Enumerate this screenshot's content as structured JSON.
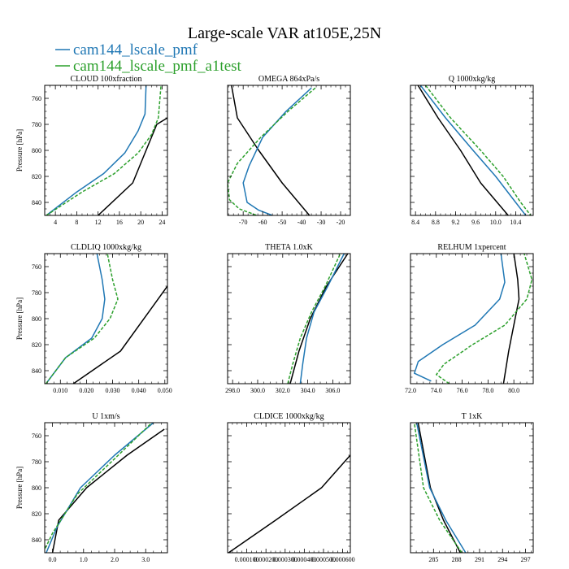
{
  "title": "Large-scale VAR at105E,25N",
  "legend": [
    {
      "label": "cam144_lscale_pmf",
      "color": "#1f77b4"
    },
    {
      "label": "cam144_lscale_pmf_a1test",
      "color": "#2ca02c"
    }
  ],
  "colors": {
    "obs": "#000000",
    "pmf": "#1f77b4",
    "a1test": "#2ca02c"
  },
  "chart_data": [
    {
      "type": "line",
      "title": "CLOUD  100xfraction",
      "ylabel": "Pressure [hPa]",
      "xlim": [
        2,
        25
      ],
      "ylim": [
        850,
        750
      ],
      "xticks": [
        4,
        8,
        12,
        16,
        20,
        24
      ],
      "xtick_labels": [
        "4",
        "8",
        "12",
        "16",
        "20",
        "24"
      ],
      "yticks": [
        760,
        780,
        800,
        820,
        840
      ],
      "ytick_labels": [
        "760",
        "780",
        "800",
        "820",
        "840"
      ],
      "series": [
        {
          "color": "#000000",
          "dash": "",
          "x": [
            12,
            18.5,
            21,
            23,
            25
          ],
          "y": [
            850,
            825,
            800,
            780,
            775
          ]
        },
        {
          "color": "#1f77b4",
          "dash": "",
          "x": [
            2.3,
            8,
            13,
            17,
            19.5,
            20.8,
            21
          ],
          "y": [
            850,
            832,
            818,
            802,
            785,
            772,
            750
          ]
        },
        {
          "color": "#2ca02c",
          "dash": "4 2",
          "x": [
            2.3,
            9,
            15,
            19.5,
            22,
            23.3,
            23.8
          ],
          "y": [
            850,
            832,
            818,
            802,
            788,
            775,
            750
          ]
        }
      ]
    },
    {
      "type": "line",
      "title": "OMEGA  864xPa/s",
      "ylabel": "",
      "xlim": [
        -78,
        -15
      ],
      "ylim": [
        850,
        750
      ],
      "xticks": [
        -70,
        -60,
        -50,
        -40,
        -30,
        -20
      ],
      "xtick_labels": [
        "-70",
        "-60",
        "-50",
        "-40",
        "-30",
        "-20"
      ],
      "yticks": [
        760,
        780,
        800,
        820,
        840
      ],
      "ytick_labels": [
        "",
        "",
        "",
        "",
        ""
      ],
      "series": [
        {
          "color": "#000000",
          "dash": "",
          "x": [
            -76,
            -73,
            -62,
            -50,
            -36
          ],
          "y": [
            750,
            775,
            800,
            825,
            850
          ]
        },
        {
          "color": "#1f77b4",
          "dash": "",
          "x": [
            -35,
            -48,
            -60,
            -67,
            -70,
            -68,
            -62,
            -55
          ],
          "y": [
            752,
            770,
            790,
            812,
            825,
            840,
            846,
            850
          ]
        },
        {
          "color": "#2ca02c",
          "dash": "4 2",
          "x": [
            -33,
            -47,
            -61,
            -73,
            -78,
            -77,
            -72,
            -63
          ],
          "y": [
            752,
            770,
            790,
            810,
            825,
            838,
            845,
            850
          ]
        }
      ]
    },
    {
      "type": "line",
      "title": "Q  1000xkg/kg",
      "ylabel": "",
      "xlim": [
        8.3,
        10.75
      ],
      "ylim": [
        850,
        750
      ],
      "xticks": [
        8.4,
        8.8,
        9.2,
        9.6,
        10.0,
        10.4
      ],
      "xtick_labels": [
        "8.4",
        "8.8",
        "9.2",
        "9.6",
        "10.0",
        "10.4"
      ],
      "yticks": [
        760,
        780,
        800,
        820,
        840
      ],
      "ytick_labels": [
        "",
        "",
        "",
        "",
        ""
      ],
      "series": [
        {
          "color": "#000000",
          "dash": "",
          "x": [
            8.45,
            8.85,
            9.3,
            9.7,
            10.25
          ],
          "y": [
            750,
            775,
            800,
            825,
            850
          ]
        },
        {
          "color": "#1f77b4",
          "dash": "",
          "x": [
            8.5,
            9.0,
            9.55,
            10.0,
            10.4,
            10.6
          ],
          "y": [
            750,
            775,
            800,
            820,
            840,
            850
          ]
        },
        {
          "color": "#2ca02c",
          "dash": "4 2",
          "x": [
            8.6,
            9.1,
            9.7,
            10.15,
            10.5,
            10.7
          ],
          "y": [
            750,
            775,
            800,
            820,
            840,
            850
          ]
        }
      ]
    },
    {
      "type": "line",
      "title": "CLDLIQ  1000xkg/kg",
      "ylabel": "Pressure [hPa]",
      "xlim": [
        0.004,
        0.051
      ],
      "ylim": [
        850,
        750
      ],
      "xticks": [
        0.01,
        0.02,
        0.03,
        0.04,
        0.05
      ],
      "xtick_labels": [
        "0.010",
        "0.020",
        "0.030",
        "0.040",
        "0.050"
      ],
      "yticks": [
        760,
        780,
        800,
        820,
        840
      ],
      "ytick_labels": [
        "760",
        "780",
        "800",
        "820",
        "840"
      ],
      "series": [
        {
          "color": "#000000",
          "dash": "",
          "x": [
            0.015,
            0.033,
            0.051
          ],
          "y": [
            850,
            825,
            775
          ]
        },
        {
          "color": "#1f77b4",
          "dash": "",
          "x": [
            0.0045,
            0.012,
            0.022,
            0.026,
            0.027,
            0.026,
            0.024
          ],
          "y": [
            850,
            830,
            815,
            800,
            785,
            770,
            750
          ]
        },
        {
          "color": "#2ca02c",
          "dash": "4 2",
          "x": [
            0.0045,
            0.012,
            0.023,
            0.029,
            0.032,
            0.03,
            0.028
          ],
          "y": [
            850,
            830,
            815,
            800,
            785,
            770,
            750
          ]
        }
      ]
    },
    {
      "type": "line",
      "title": "THETA  1.0xK",
      "ylabel": "",
      "xlim": [
        297.6,
        307.4
      ],
      "ylim": [
        850,
        750
      ],
      "xticks": [
        298,
        300,
        302,
        304,
        306
      ],
      "xtick_labels": [
        "298.0",
        "300.0",
        "302.0",
        "304.0",
        "306.0"
      ],
      "yticks": [
        760,
        780,
        800,
        820,
        840
      ],
      "ytick_labels": [
        "",
        "",
        "",
        "",
        ""
      ],
      "series": [
        {
          "color": "#000000",
          "dash": "",
          "x": [
            302.6,
            303.3,
            304.2,
            305.5,
            307.2
          ],
          "y": [
            850,
            825,
            800,
            775,
            750
          ]
        },
        {
          "color": "#1f77b4",
          "dash": "",
          "x": [
            303.4,
            303.6,
            303.9,
            304.5,
            305.6,
            306.9
          ],
          "y": [
            850,
            835,
            815,
            795,
            775,
            750
          ]
        },
        {
          "color": "#2ca02c",
          "dash": "4 2",
          "x": [
            302.4,
            302.8,
            303.4,
            304.3,
            305.4,
            306.6
          ],
          "y": [
            850,
            835,
            815,
            795,
            775,
            750
          ]
        }
      ]
    },
    {
      "type": "line",
      "title": "RELHUM  1xpercent",
      "ylabel": "",
      "xlim": [
        72,
        81.5
      ],
      "ylim": [
        850,
        750
      ],
      "xticks": [
        72,
        74,
        76,
        78,
        80
      ],
      "xtick_labels": [
        "72.0",
        "74.0",
        "76.0",
        "78.0",
        "80.0"
      ],
      "yticks": [
        760,
        780,
        800,
        820,
        840
      ],
      "ytick_labels": [
        "",
        "",
        "",
        "",
        ""
      ],
      "series": [
        {
          "color": "#000000",
          "dash": "",
          "x": [
            79.2,
            79.6,
            80.1,
            80.4,
            80.3,
            80.0
          ],
          "y": [
            850,
            825,
            800,
            785,
            770,
            750
          ]
        },
        {
          "color": "#1f77b4",
          "dash": "",
          "x": [
            73.6,
            72.3,
            72.6,
            74.5,
            77.0,
            78.9,
            79.3,
            79.0
          ],
          "y": [
            848,
            842,
            833,
            820,
            805,
            785,
            772,
            750
          ]
        },
        {
          "color": "#2ca02c",
          "dash": "4 2",
          "x": [
            75.0,
            74.0,
            74.6,
            76.8,
            79.3,
            81.0,
            81.4,
            80.8
          ],
          "y": [
            850,
            843,
            835,
            820,
            805,
            785,
            770,
            750
          ]
        }
      ]
    },
    {
      "type": "line",
      "title": "U  1xm/s",
      "ylabel": "Pressure [hPa]",
      "xlim": [
        -0.25,
        3.7
      ],
      "ylim": [
        850,
        750
      ],
      "xticks": [
        0,
        1,
        2,
        3
      ],
      "xtick_labels": [
        "0.0",
        "1.0",
        "2.0",
        "3.0"
      ],
      "yticks": [
        760,
        780,
        800,
        820,
        840
      ],
      "ytick_labels": [
        "760",
        "780",
        "800",
        "820",
        "840"
      ],
      "series": [
        {
          "color": "#000000",
          "dash": "",
          "x": [
            0.0,
            0.2,
            1.1,
            2.4,
            3.6
          ],
          "y": [
            850,
            825,
            800,
            775,
            755
          ]
        },
        {
          "color": "#1f77b4",
          "dash": "",
          "x": [
            -0.2,
            0.15,
            0.9,
            2.0,
            3.25
          ],
          "y": [
            850,
            830,
            800,
            775,
            750
          ]
        },
        {
          "color": "#2ca02c",
          "dash": "4 2",
          "x": [
            -0.3,
            0.0,
            0.8,
            1.9,
            3.2
          ],
          "y": [
            850,
            835,
            805,
            780,
            750
          ]
        }
      ]
    },
    {
      "type": "line",
      "title": "CLDICE  1000xkg/kg",
      "ylabel": "",
      "xlim": [
        0,
        0.00064
      ],
      "ylim": [
        850,
        750
      ],
      "xticks": [
        0.0001,
        0.0002,
        0.0003,
        0.0004,
        0.0005,
        0.0006
      ],
      "xtick_labels": [
        "0.000100",
        "0.000200",
        "0.000300",
        "0.000400",
        "0.000500",
        "0.000600"
      ],
      "yticks": [
        760,
        780,
        800,
        820,
        840
      ],
      "ytick_labels": [
        "",
        "",
        "",
        "",
        ""
      ],
      "series": [
        {
          "color": "#000000",
          "dash": "",
          "x": [
            5e-06,
            0.00025,
            0.00049,
            0.00064
          ],
          "y": [
            850,
            825,
            800,
            775
          ]
        }
      ]
    },
    {
      "type": "line",
      "title": "T  1xK",
      "ylabel": "",
      "xlim": [
        282,
        298
      ],
      "ylim": [
        850,
        750
      ],
      "xticks": [
        285,
        288,
        291,
        294,
        297
      ],
      "xtick_labels": [
        "285",
        "288",
        "291",
        "294",
        "297"
      ],
      "yticks": [
        760,
        780,
        800,
        820,
        840
      ],
      "ytick_labels": [
        "",
        "",
        "",
        "",
        ""
      ],
      "series": [
        {
          "color": "#000000",
          "dash": "",
          "x": [
            288.5,
            286.3,
            284.6,
            283.0
          ],
          "y": [
            850,
            825,
            800,
            750
          ]
        },
        {
          "color": "#1f77b4",
          "dash": "",
          "x": [
            289.2,
            286.6,
            284.5,
            282.8
          ],
          "y": [
            850,
            825,
            800,
            750
          ]
        },
        {
          "color": "#2ca02c",
          "dash": "4 2",
          "x": [
            288.7,
            285.8,
            283.7,
            282.5
          ],
          "y": [
            850,
            825,
            800,
            750
          ]
        }
      ]
    }
  ]
}
